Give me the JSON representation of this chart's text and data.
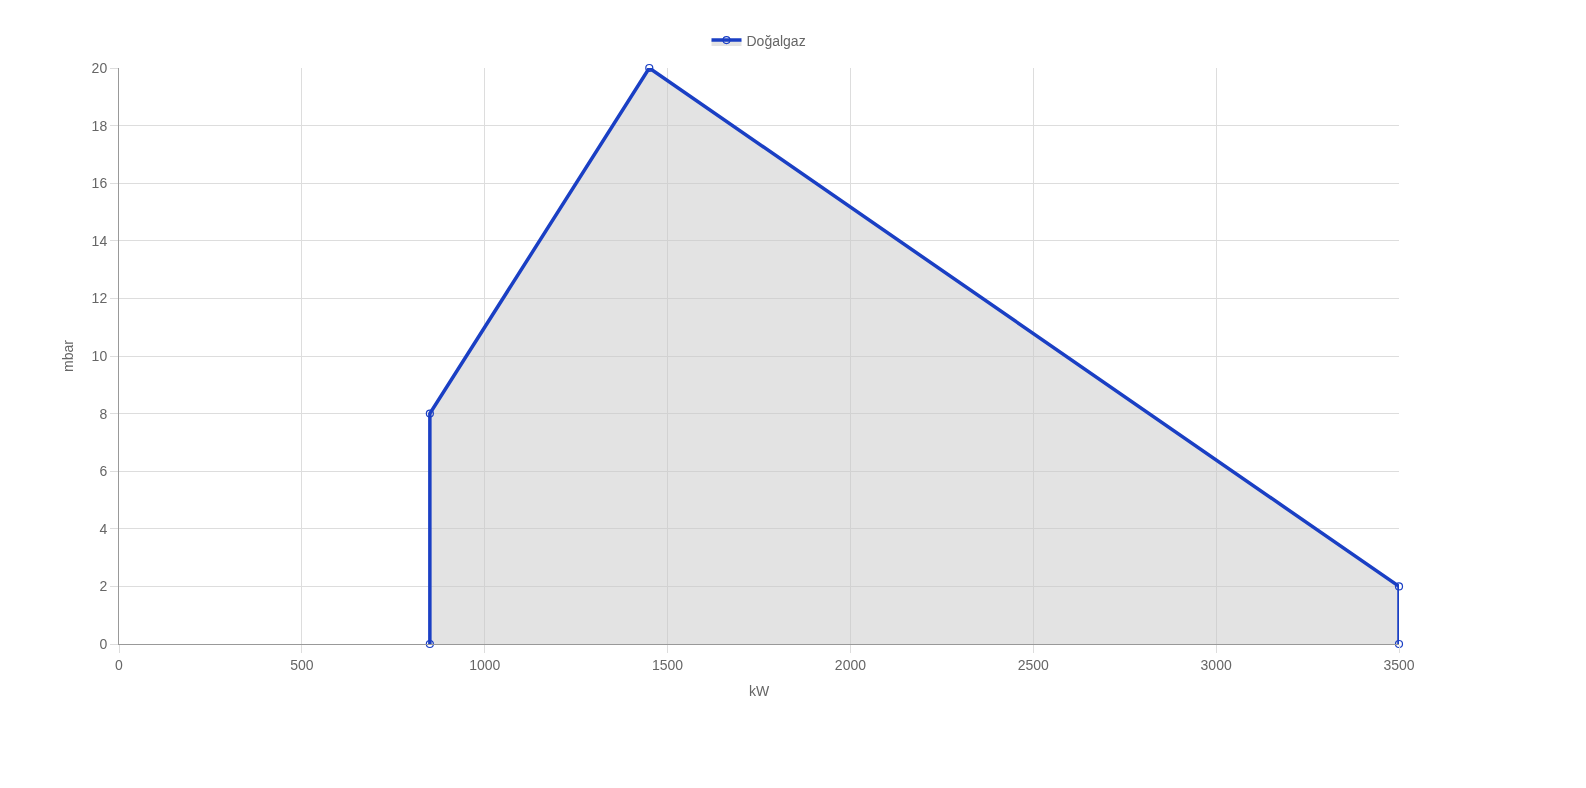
{
  "chart_data": {
    "type": "area",
    "xlabel": "kW",
    "ylabel": "mbar",
    "x": [
      850,
      850,
      1450,
      3500,
      3500
    ],
    "series": [
      {
        "name": "Doğalgaz",
        "color": "#1a3fc4",
        "values": [
          0,
          8,
          20,
          2,
          0
        ]
      }
    ],
    "xlim": [
      0,
      3500
    ],
    "xticks": [
      0,
      500,
      1000,
      1500,
      2000,
      2500,
      3000,
      3500
    ],
    "ylim": [
      0,
      20
    ],
    "yticks": [
      0,
      2,
      4,
      6,
      8,
      10,
      12,
      14,
      16,
      18,
      20
    ],
    "grid": true,
    "legend": "top",
    "marker": "circle",
    "line_style": "solid"
  }
}
